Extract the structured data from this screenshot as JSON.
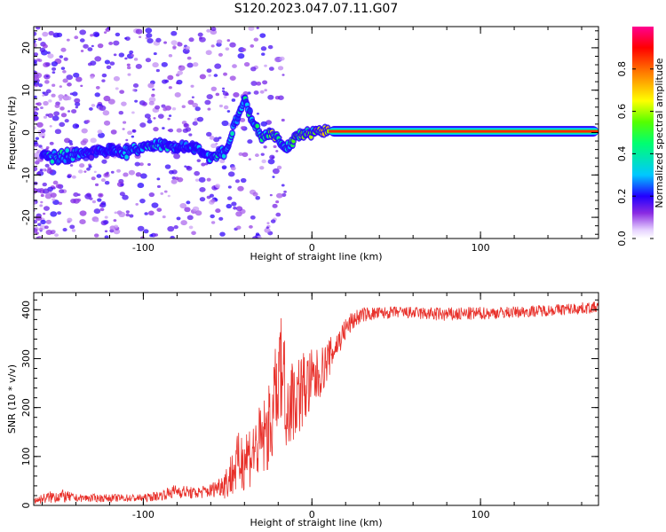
{
  "title": "S120.2023.047.07.11.G07",
  "chart_data": [
    {
      "type": "heatmap",
      "xlabel": "Height of straight line (km)",
      "ylabel": "Frequency (Hz)",
      "xlim": [
        -165,
        170
      ],
      "ylim": [
        -25,
        25
      ],
      "xticks": [
        -100,
        0,
        100
      ],
      "yticks": [
        -20,
        -10,
        0,
        10,
        20
      ],
      "colorbar": {
        "label": "Normalized spectral amplitude",
        "range": [
          0,
          1
        ],
        "ticks": [
          "0.0",
          "0.2",
          "0.4",
          "0.6",
          "0.8"
        ],
        "colormap": "rainbow"
      },
      "ridge": {
        "x": [
          -160,
          -150,
          -140,
          -130,
          -120,
          -110,
          -100,
          -90,
          -80,
          -70,
          -60,
          -50,
          -45,
          -40,
          -35,
          -30,
          -25,
          -20,
          -15,
          -10,
          -5,
          0,
          5,
          10,
          170
        ],
        "y": [
          -5,
          -6,
          -5,
          -4.5,
          -4,
          -4.5,
          -3.5,
          -3,
          -3.5,
          -3.5,
          -6,
          -4,
          3,
          8,
          2,
          -1,
          0,
          -1,
          -4,
          -1,
          -0.5,
          0,
          0.2,
          0.3,
          0.3
        ],
        "amplitude": [
          0.3,
          0.4,
          0.3,
          0.25,
          0.25,
          0.3,
          0.35,
          0.35,
          0.3,
          0.3,
          0.35,
          0.4,
          0.4,
          0.4,
          0.4,
          0.45,
          0.6,
          0.5,
          0.4,
          0.5,
          0.55,
          0.6,
          0.85,
          0.9,
          0.9
        ]
      }
    },
    {
      "type": "line",
      "xlabel": "Height of straight line (km)",
      "ylabel": "SNR (10 * v/v)",
      "xlim": [
        -165,
        170
      ],
      "ylim": [
        0,
        435
      ],
      "xticks": [
        -100,
        0,
        100
      ],
      "yticks": [
        0,
        100,
        200,
        300,
        400
      ],
      "color": "#e8302a",
      "envelope": {
        "x": [
          -165,
          -150,
          -140,
          -120,
          -100,
          -90,
          -80,
          -70,
          -60,
          -55,
          -50,
          -45,
          -40,
          -35,
          -30,
          -25,
          -20,
          -18,
          -15,
          -10,
          -5,
          0,
          5,
          10,
          15,
          20,
          25,
          30,
          50,
          80,
          120,
          170
        ],
        "y": [
          10,
          20,
          15,
          15,
          15,
          20,
          30,
          25,
          30,
          40,
          50,
          80,
          100,
          110,
          130,
          160,
          230,
          280,
          210,
          220,
          240,
          250,
          270,
          300,
          330,
          360,
          380,
          390,
          395,
          390,
          395,
          405
        ],
        "noise": [
          8,
          15,
          8,
          8,
          8,
          10,
          15,
          12,
          15,
          20,
          40,
          60,
          70,
          70,
          80,
          90,
          110,
          120,
          100,
          90,
          80,
          70,
          50,
          40,
          30,
          25,
          20,
          15,
          12,
          15,
          12,
          12
        ]
      }
    }
  ]
}
